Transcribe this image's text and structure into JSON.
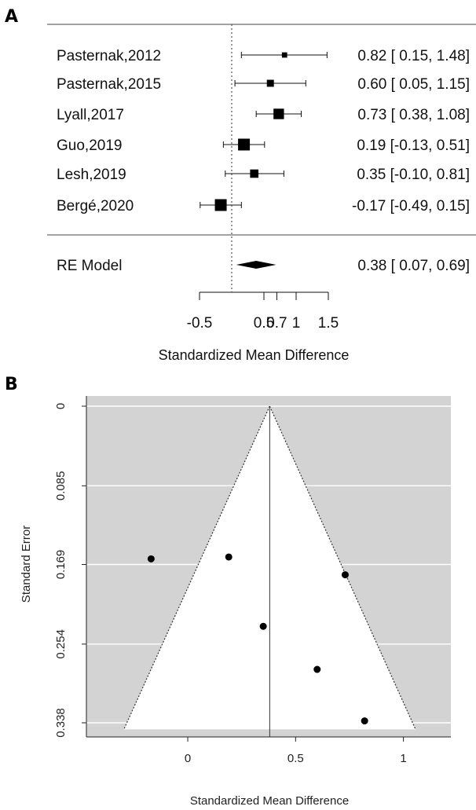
{
  "chart_data": [
    {
      "panel": "A",
      "type": "forest",
      "studies": [
        {
          "label": "Pasternak,2012",
          "est": 0.82,
          "lo": 0.15,
          "hi": 1.48,
          "ci_text": "0.82 [ 0.15, 1.48]",
          "weight": 0.25
        },
        {
          "label": "Pasternak,2015",
          "est": 0.6,
          "lo": 0.05,
          "hi": 1.15,
          "ci_text": "0.60 [ 0.05, 1.15]",
          "weight": 0.45
        },
        {
          "label": "Lyall,2017",
          "est": 0.73,
          "lo": 0.38,
          "hi": 1.08,
          "ci_text": "0.73 [ 0.38, 1.08]",
          "weight": 0.85
        },
        {
          "label": "Guo,2019",
          "est": 0.19,
          "lo": -0.13,
          "hi": 0.51,
          "ci_text": "0.19 [-0.13, 0.51]",
          "weight": 1.0
        },
        {
          "label": "Lesh,2019",
          "est": 0.35,
          "lo": -0.1,
          "hi": 0.81,
          "ci_text": "0.35 [-0.10, 0.81]",
          "weight": 0.6
        },
        {
          "label": "Bergé,2020",
          "est": -0.17,
          "lo": -0.49,
          "hi": 0.15,
          "ci_text": "-0.17 [-0.49, 0.15]",
          "weight": 1.0
        }
      ],
      "summary": {
        "label": "RE Model",
        "est": 0.38,
        "lo": 0.07,
        "hi": 0.69,
        "ci_text": "0.38 [ 0.07, 0.69]"
      },
      "xticks": [
        -0.5,
        0.5,
        0.7,
        1,
        1.5
      ],
      "xtick_labels": [
        "-0.5",
        "0.5",
        "0.7",
        "1",
        "1.5"
      ],
      "xlim": [
        -0.5,
        1.5
      ],
      "xlabel": "Standardized Mean Difference",
      "reference_line": 0
    },
    {
      "panel": "B",
      "type": "scatter",
      "subtype": "funnel",
      "points": [
        {
          "x": -0.17,
          "y": 0.163
        },
        {
          "x": 0.19,
          "y": 0.161
        },
        {
          "x": 0.73,
          "y": 0.18
        },
        {
          "x": 0.35,
          "y": 0.235
        },
        {
          "x": 0.6,
          "y": 0.281
        },
        {
          "x": 0.82,
          "y": 0.336
        }
      ],
      "center": 0.38,
      "xlim": [
        -0.47,
        1.22
      ],
      "ylim": [
        0.345,
        0
      ],
      "xticks": [
        0,
        0.5,
        1
      ],
      "xtick_labels": [
        "0",
        "0.5",
        "1"
      ],
      "yticks": [
        0,
        0.085,
        0.169,
        0.254,
        0.338
      ],
      "ytick_labels": [
        "0",
        "0.085",
        "0.169",
        "0.254",
        "0.338"
      ],
      "xlabel": "Standardized Mean Difference",
      "ylabel": "Standard Error",
      "background_color": "#d3d3d3",
      "grid": true
    }
  ],
  "panels": {
    "a_label": "A",
    "b_label": "B"
  }
}
